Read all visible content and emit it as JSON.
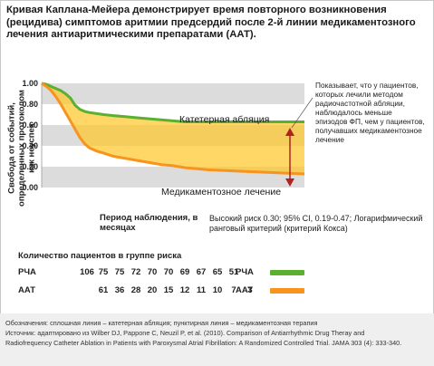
{
  "title": "Кривая Каплана-Мейера демонстрирует время повторного возникновения (рецидива) симптомов аритмии предсердий после 2-й линии медикаментозного лечения антиаритмическими препаратами (ААТ).",
  "chart_data": {
    "type": "line",
    "ylabel": "Свобода от событий, определенных протоколом как неуспех",
    "xlabel": "Период наблюдения, в месяцах",
    "ylim": [
      0,
      1
    ],
    "yticks": [
      "0.00",
      "0.20",
      "0.40",
      "0.60",
      "0.80",
      "1.00"
    ],
    "yticks_values": [
      0,
      0.2,
      0.4,
      0.6,
      0.8,
      1.0
    ],
    "grid_bands": true,
    "xlim": [
      0,
      11
    ],
    "series": [
      {
        "name": "Катетерная абляция",
        "color": "#5bb030",
        "points": [
          [
            0,
            1.0
          ],
          [
            0.2,
            0.99
          ],
          [
            0.4,
            0.97
          ],
          [
            0.6,
            0.95
          ],
          [
            0.8,
            0.93
          ],
          [
            1.0,
            0.9
          ],
          [
            1.2,
            0.86
          ],
          [
            1.4,
            0.79
          ],
          [
            1.6,
            0.75
          ],
          [
            1.8,
            0.73
          ],
          [
            2.0,
            0.72
          ],
          [
            2.3,
            0.71
          ],
          [
            2.6,
            0.7
          ],
          [
            3.0,
            0.69
          ],
          [
            3.5,
            0.68
          ],
          [
            4.0,
            0.67
          ],
          [
            4.5,
            0.66
          ],
          [
            5.0,
            0.65
          ],
          [
            5.5,
            0.64
          ],
          [
            6.0,
            0.63
          ],
          [
            6.5,
            0.63
          ],
          [
            7.0,
            0.63
          ],
          [
            8.0,
            0.63
          ],
          [
            9.0,
            0.63
          ],
          [
            10.0,
            0.63
          ],
          [
            11.0,
            0.63
          ]
        ]
      },
      {
        "name": "Медикаментозное лечение",
        "color": "#f7941d",
        "points": [
          [
            0,
            1.0
          ],
          [
            0.2,
            0.97
          ],
          [
            0.4,
            0.93
          ],
          [
            0.6,
            0.87
          ],
          [
            0.8,
            0.8
          ],
          [
            1.0,
            0.72
          ],
          [
            1.2,
            0.64
          ],
          [
            1.4,
            0.56
          ],
          [
            1.6,
            0.48
          ],
          [
            1.8,
            0.42
          ],
          [
            2.0,
            0.38
          ],
          [
            2.3,
            0.35
          ],
          [
            2.6,
            0.33
          ],
          [
            3.0,
            0.3
          ],
          [
            3.5,
            0.28
          ],
          [
            4.0,
            0.26
          ],
          [
            4.5,
            0.24
          ],
          [
            5.0,
            0.22
          ],
          [
            5.5,
            0.21
          ],
          [
            6.0,
            0.19
          ],
          [
            6.5,
            0.18
          ],
          [
            7.0,
            0.17
          ],
          [
            8.0,
            0.16
          ],
          [
            9.0,
            0.15
          ],
          [
            10.0,
            0.14
          ],
          [
            11.0,
            0.13
          ]
        ]
      }
    ],
    "labels": {
      "ablation": "Катетерная абляция",
      "drug": "Медикаментозное лечение"
    }
  },
  "stats_text": "Высокий риск 0.30; 95% CI, 0.19-0.47; Логарифмический ранговый критерий (критерий Кокса)",
  "annotation": "Показывает, что у пациентов, которых лечили методом радиочастотной абляции, наблюдалось меньше эпизодов ФП, чем у пациентов, получавших медикаментозное лечение",
  "risk_table": {
    "title": "Количество пациентов в группе риска",
    "rows": [
      {
        "name": "РЧА",
        "values": [
          "106",
          "75",
          "75",
          "72",
          "70",
          "70",
          "69",
          "67",
          "65",
          "51"
        ],
        "legend_label": "РЧА",
        "color": "#5bb030"
      },
      {
        "name": "ААТ",
        "values": [
          "61",
          "36",
          "28",
          "20",
          "15",
          "12",
          "11",
          "10",
          "7",
          "3"
        ],
        "legend_label": "ААТ",
        "color": "#f7941d"
      }
    ]
  },
  "footer": {
    "line1": "Обозначения: сплошная линия – катетерная абляция; пунктирная линия – медикаментозная терапия",
    "line2": "Источник: адаптировано из Wilber DJ, Pappone C, Neuzil P, et al. (2010). Comparison of Antiarrhythmic Drug Theray and",
    "line3": "Radiofrequency Catheter Ablation in Patients with Paroxysmal Atrial Fibrillation: A Randomized Controlled Trial. JAMA 303 (4): 333-340."
  }
}
